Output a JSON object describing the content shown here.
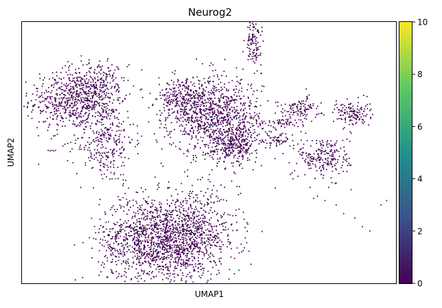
{
  "chart_data": {
    "type": "scatter",
    "title": "Neurog2",
    "xlabel": "UMAP1",
    "ylabel": "UMAP2",
    "xlim": [
      0,
      100
    ],
    "ylim": [
      0,
      60
    ],
    "grid": false,
    "colorbar": {
      "range": [
        0,
        10
      ],
      "ticks": [
        "0",
        "2",
        "4",
        "6",
        "8",
        "10"
      ],
      "colormap": "viridis",
      "colors": [
        "#440154",
        "#3b528b",
        "#21918c",
        "#5ec962",
        "#fde725"
      ]
    },
    "clusters": [
      {
        "cx": 13,
        "cy": 42,
        "sx": 5.5,
        "sy": 3.5,
        "n": 520
      },
      {
        "cx": 20,
        "cy": 45,
        "sx": 4,
        "sy": 3,
        "n": 260
      },
      {
        "cx": 22,
        "cy": 33,
        "sx": 4,
        "sy": 5,
        "n": 320
      },
      {
        "cx": 35,
        "cy": 10,
        "sx": 7,
        "sy": 5,
        "n": 1200
      },
      {
        "cx": 46,
        "cy": 11,
        "sx": 6,
        "sy": 5,
        "n": 650
      },
      {
        "cx": 52,
        "cy": 38,
        "sx": 6,
        "sy": 4.5,
        "n": 950
      },
      {
        "cx": 43,
        "cy": 42,
        "sx": 3.5,
        "sy": 2.5,
        "n": 260
      },
      {
        "cx": 57,
        "cy": 32,
        "sx": 3,
        "sy": 2,
        "n": 260
      },
      {
        "cx": 62,
        "cy": 55,
        "sx": 1,
        "sy": 2.5,
        "n": 110
      },
      {
        "cx": 74,
        "cy": 40,
        "sx": 2.8,
        "sy": 1.4,
        "n": 110
      },
      {
        "cx": 88,
        "cy": 39,
        "sx": 2.5,
        "sy": 1.5,
        "n": 140
      },
      {
        "cx": 81,
        "cy": 29,
        "sx": 3.5,
        "sy": 2.5,
        "n": 230
      },
      {
        "cx": 68,
        "cy": 33,
        "sx": 2,
        "sy": 1,
        "n": 60
      },
      {
        "cx": 70,
        "cy": 37,
        "sx": 3,
        "sy": 0.6,
        "n": 55
      }
    ],
    "scattered_points": [
      [
        7,
        30.5
      ],
      [
        7.5,
        30.4
      ],
      [
        8,
        30.5
      ],
      [
        8.5,
        30.4
      ],
      [
        9,
        30.5
      ],
      [
        39.5,
        32
      ],
      [
        40,
        31.8
      ],
      [
        40.5,
        32.2
      ],
      [
        71.8,
        25
      ],
      [
        72.2,
        25.3
      ],
      [
        77,
        22
      ],
      [
        79,
        20
      ],
      [
        81,
        19
      ],
      [
        84,
        18
      ],
      [
        86,
        16
      ],
      [
        89,
        15
      ],
      [
        91,
        13
      ],
      [
        93,
        12
      ],
      [
        96,
        18
      ],
      [
        97.5,
        19
      ],
      [
        82,
        22
      ],
      [
        84,
        23
      ],
      [
        78,
        19.5
      ],
      [
        88,
        21.5
      ]
    ],
    "high_expression_points": [
      [
        18,
        43,
        7
      ],
      [
        19,
        44,
        9
      ],
      [
        14,
        34,
        5
      ],
      [
        22,
        30,
        4
      ],
      [
        25,
        24,
        8
      ],
      [
        33,
        13,
        9
      ],
      [
        36,
        9,
        3
      ],
      [
        30,
        12,
        5
      ],
      [
        44,
        11,
        6
      ],
      [
        48,
        10,
        4
      ],
      [
        50,
        6,
        8
      ],
      [
        52,
        20,
        3
      ],
      [
        51,
        36,
        6
      ],
      [
        55,
        31,
        3
      ],
      [
        58,
        38,
        4
      ],
      [
        46,
        41,
        2
      ],
      [
        80,
        25,
        2
      ],
      [
        58,
        3,
        6
      ]
    ]
  }
}
